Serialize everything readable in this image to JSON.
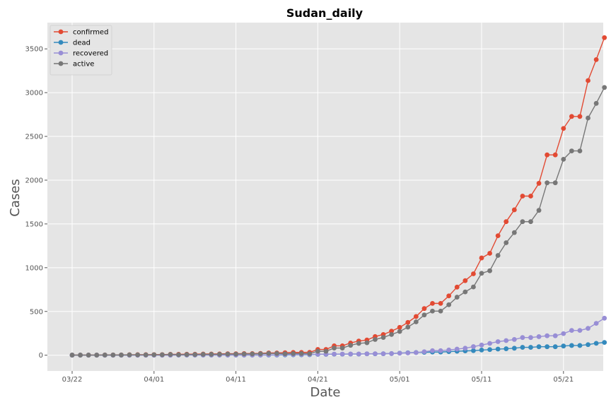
{
  "chart_data": {
    "type": "line",
    "title": "Sudan_daily",
    "xlabel": "Date",
    "ylabel": "Cases",
    "x_start": "2020-03-22",
    "x_ticks": [
      "03/22",
      "04/01",
      "04/11",
      "04/21",
      "05/01",
      "05/11",
      "05/21"
    ],
    "y_ticks": [
      "0",
      "500",
      "1000",
      "1500",
      "2000",
      "2500",
      "3000",
      "3500"
    ],
    "ylim": [
      -180,
      3800
    ],
    "grid": true,
    "legend_position": "top-left",
    "series": [
      {
        "name": "confirmed",
        "color": "#E24A33",
        "values": [
          2,
          2,
          2,
          2,
          3,
          3,
          3,
          5,
          6,
          6,
          7,
          7,
          10,
          10,
          12,
          12,
          14,
          14,
          15,
          17,
          17,
          19,
          19,
          21,
          26,
          26,
          29,
          32,
          32,
          33,
          66,
          66,
          107,
          107,
          140,
          162,
          174,
          213,
          237,
          275,
          318,
          375,
          442,
          533,
          592,
          592,
          678,
          778,
          852,
          930,
          1111,
          1164,
          1365,
          1526,
          1661,
          1818,
          1818,
          1964,
          2289,
          2289,
          2591,
          2728,
          2728,
          3138,
          3377,
          3628
        ]
      },
      {
        "name": "dead",
        "color": "#348ABD",
        "values": [
          1,
          1,
          1,
          1,
          1,
          1,
          1,
          1,
          2,
          2,
          2,
          2,
          2,
          2,
          2,
          2,
          2,
          2,
          2,
          2,
          2,
          2,
          2,
          2,
          2,
          2,
          4,
          5,
          5,
          6,
          10,
          10,
          12,
          12,
          13,
          13,
          16,
          16,
          17,
          19,
          24,
          28,
          31,
          33,
          36,
          36,
          41,
          45,
          49,
          52,
          59,
          64,
          70,
          74,
          80,
          90,
          90,
          97,
          97,
          97,
          105,
          111,
          111,
          121,
          136,
          146
        ]
      },
      {
        "name": "recovered",
        "color": "#988ED5",
        "values": [
          0,
          0,
          0,
          0,
          0,
          0,
          0,
          0,
          0,
          0,
          0,
          0,
          0,
          2,
          2,
          2,
          2,
          2,
          2,
          2,
          2,
          2,
          2,
          2,
          4,
          4,
          8,
          8,
          8,
          9,
          11,
          11,
          13,
          13,
          14,
          14,
          16,
          17,
          17,
          19,
          23,
          26,
          30,
          40,
          52,
          52,
          60,
          70,
          80,
          98,
          116,
          135,
          155,
          167,
          180,
          202,
          202,
          212,
          222,
          222,
          247,
          283,
          283,
          307,
          364,
          423
        ]
      },
      {
        "name": "active",
        "color": "#777777",
        "values": [
          1,
          1,
          1,
          1,
          2,
          2,
          2,
          4,
          4,
          4,
          5,
          5,
          8,
          6,
          8,
          8,
          10,
          10,
          11,
          13,
          13,
          15,
          15,
          17,
          20,
          20,
          17,
          19,
          19,
          18,
          45,
          45,
          82,
          82,
          113,
          135,
          142,
          180,
          203,
          237,
          271,
          321,
          381,
          460,
          504,
          504,
          577,
          663,
          723,
          780,
          936,
          965,
          1140,
          1285,
          1401,
          1526,
          1526,
          1655,
          1970,
          1970,
          2239,
          2334,
          2334,
          2710,
          2877,
          3059
        ]
      }
    ]
  }
}
